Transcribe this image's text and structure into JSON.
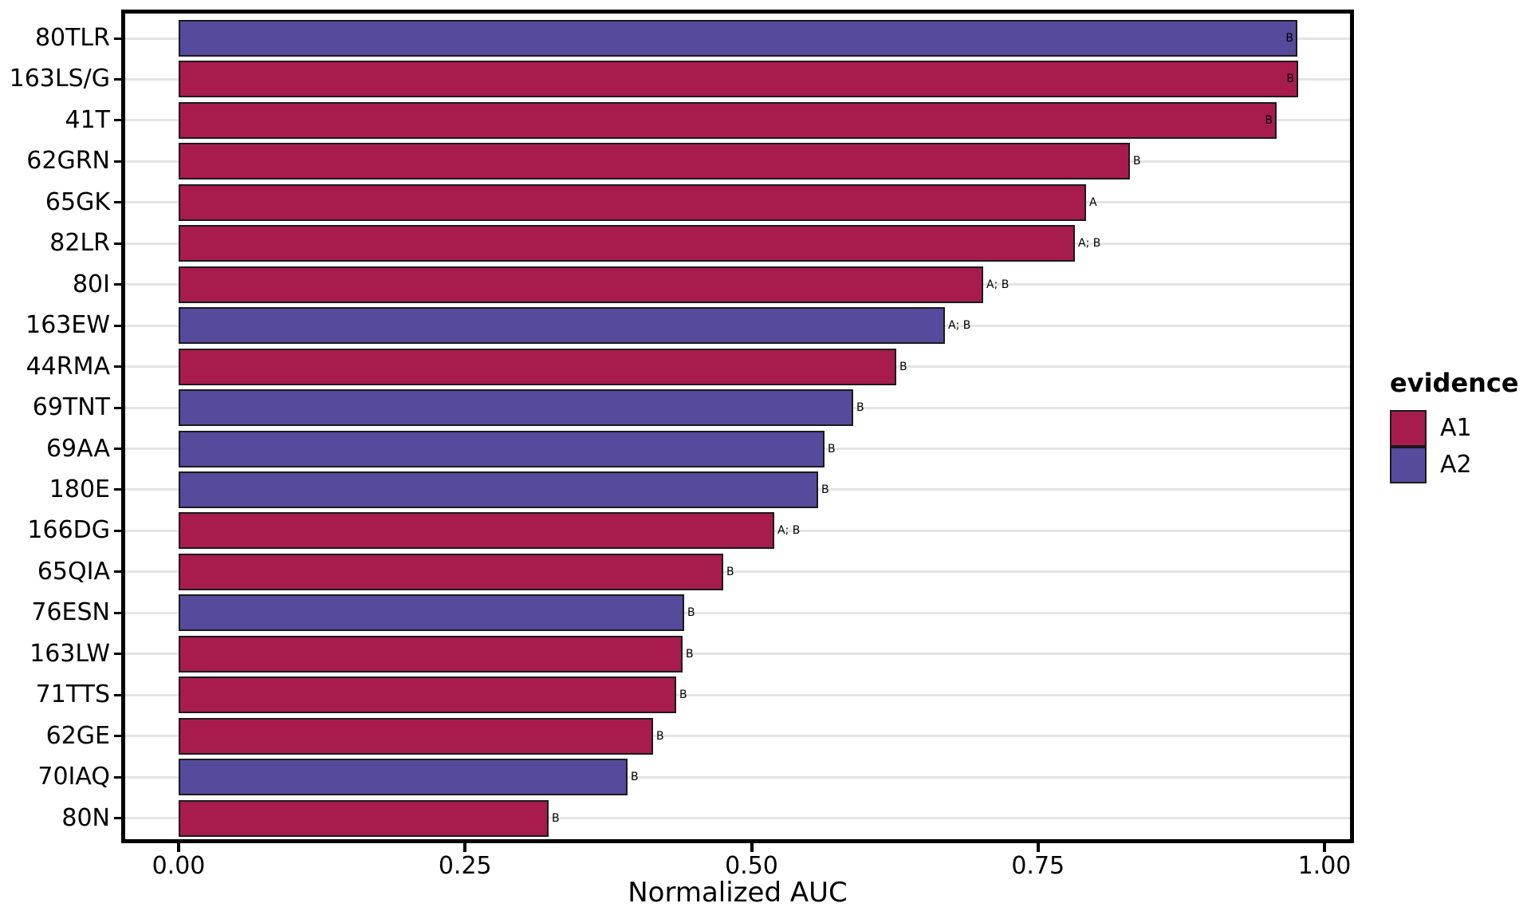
{
  "chart_data": {
    "type": "bar",
    "orientation": "horizontal",
    "title": "",
    "xlabel": "Normalized AUC",
    "ylabel": "",
    "xlim": [
      0,
      1
    ],
    "x_ticks": [
      0.0,
      0.25,
      0.5,
      0.75,
      1.0
    ],
    "x_tick_labels": [
      "0.00",
      "0.25",
      "0.50",
      "0.75",
      "1.00"
    ],
    "grid": "horizontal-major-only",
    "legend": {
      "title": "evidence",
      "position": "right",
      "entries": [
        {
          "label": "A1",
          "color": "#A81B4D"
        },
        {
          "label": "A2",
          "color": "#564A9C"
        }
      ]
    },
    "bars": [
      {
        "category": "80TLR",
        "value": 0.976,
        "evidence": "A2",
        "annotation": "B",
        "annotation_inside": true
      },
      {
        "category": "163LS/G",
        "value": 0.977,
        "evidence": "A1",
        "annotation": "B",
        "annotation_inside": true
      },
      {
        "category": "41T",
        "value": 0.958,
        "evidence": "A1",
        "annotation": "B",
        "annotation_inside": true
      },
      {
        "category": "62GRN",
        "value": 0.83,
        "evidence": "A1",
        "annotation": "B",
        "annotation_inside": false
      },
      {
        "category": "65GK",
        "value": 0.792,
        "evidence": "A1",
        "annotation": "A",
        "annotation_inside": false
      },
      {
        "category": "82LR",
        "value": 0.782,
        "evidence": "A1",
        "annotation": "A; B",
        "annotation_inside": false
      },
      {
        "category": "80I",
        "value": 0.702,
        "evidence": "A1",
        "annotation": "A; B",
        "annotation_inside": false
      },
      {
        "category": "163EW",
        "value": 0.669,
        "evidence": "A2",
        "annotation": "A; B",
        "annotation_inside": false
      },
      {
        "category": "44RMA",
        "value": 0.626,
        "evidence": "A1",
        "annotation": "B",
        "annotation_inside": false
      },
      {
        "category": "69TNT",
        "value": 0.589,
        "evidence": "A2",
        "annotation": "B",
        "annotation_inside": false
      },
      {
        "category": "69AA",
        "value": 0.564,
        "evidence": "A2",
        "annotation": "B",
        "annotation_inside": false
      },
      {
        "category": "180E",
        "value": 0.558,
        "evidence": "A2",
        "annotation": "B",
        "annotation_inside": false
      },
      {
        "category": "166DG",
        "value": 0.52,
        "evidence": "A1",
        "annotation": "A; B",
        "annotation_inside": false
      },
      {
        "category": "65QIA",
        "value": 0.475,
        "evidence": "A1",
        "annotation": "B",
        "annotation_inside": false
      },
      {
        "category": "76ESN",
        "value": 0.441,
        "evidence": "A2",
        "annotation": "B",
        "annotation_inside": false
      },
      {
        "category": "163LW",
        "value": 0.44,
        "evidence": "A1",
        "annotation": "B",
        "annotation_inside": false
      },
      {
        "category": "71TTS",
        "value": 0.434,
        "evidence": "A1",
        "annotation": "B",
        "annotation_inside": false
      },
      {
        "category": "62GE",
        "value": 0.414,
        "evidence": "A1",
        "annotation": "B",
        "annotation_inside": false
      },
      {
        "category": "70IAQ",
        "value": 0.392,
        "evidence": "A2",
        "annotation": "B",
        "annotation_inside": false
      },
      {
        "category": "80N",
        "value": 0.323,
        "evidence": "A1",
        "annotation": "B",
        "annotation_inside": false
      }
    ]
  },
  "colors": {
    "evidence_A1": "#A81B4D",
    "evidence_A2": "#564A9C",
    "bar_border": "#1A1A1A",
    "panel_border": "#000000",
    "gridline": "#E4E4E4",
    "text": "#000000",
    "background": "#FFFFFF"
  }
}
